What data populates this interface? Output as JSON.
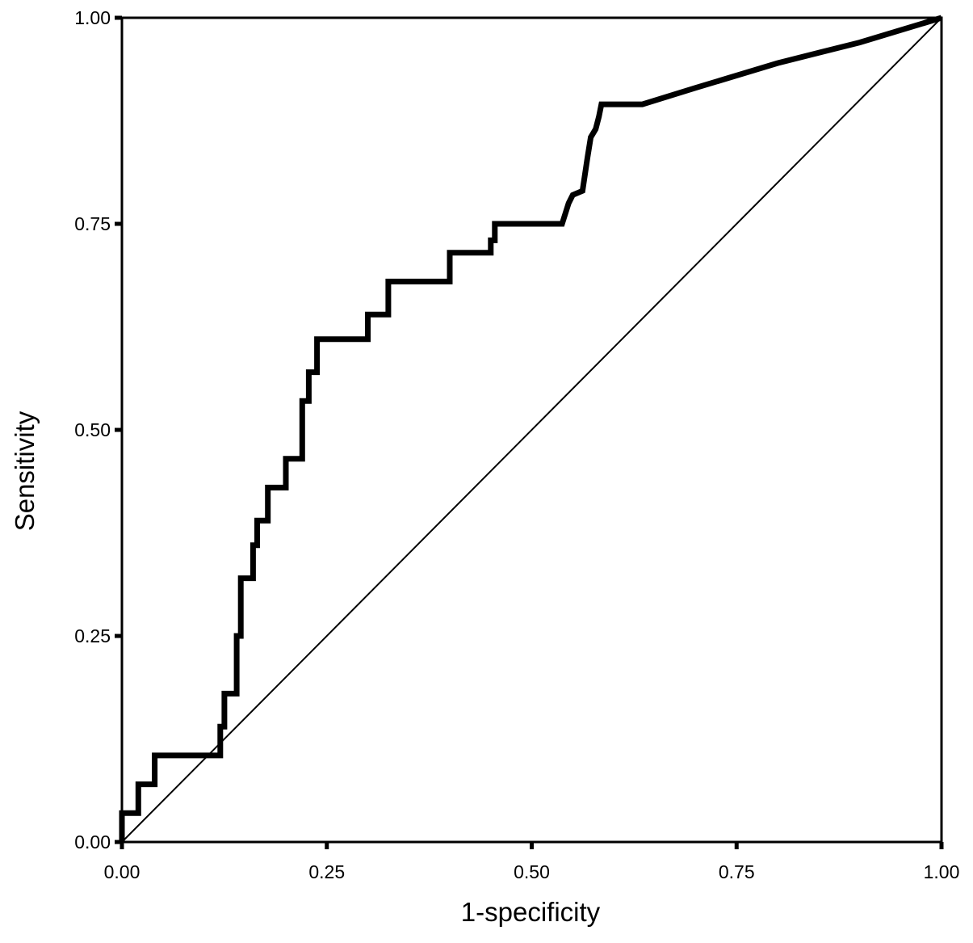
{
  "chart_data": {
    "type": "line",
    "xlabel": "1-specificity",
    "ylabel": "Sensitivity",
    "xlim": [
      0,
      1
    ],
    "ylim": [
      0,
      1
    ],
    "grid": false,
    "legend": "none",
    "x_ticks": [
      {
        "value": 0,
        "label": "0.00"
      },
      {
        "value": 0.25,
        "label": "0.25"
      },
      {
        "value": 0.5,
        "label": "0.50"
      },
      {
        "value": 0.75,
        "label": "0.75"
      },
      {
        "value": 1,
        "label": "1.00"
      }
    ],
    "y_ticks": [
      {
        "value": 0,
        "label": "0.00"
      },
      {
        "value": 0.25,
        "label": "0.25"
      },
      {
        "value": 0.5,
        "label": "0.50"
      },
      {
        "value": 0.75,
        "label": "0.75"
      },
      {
        "value": 1,
        "label": "1.00"
      }
    ],
    "series": [
      {
        "color": "#000000",
        "style": "step",
        "points": [
          [
            0,
            0
          ],
          [
            0,
            0.035
          ],
          [
            0.02,
            0.035
          ],
          [
            0.02,
            0.07
          ],
          [
            0.04,
            0.07
          ],
          [
            0.04,
            0.105
          ],
          [
            0.12,
            0.105
          ],
          [
            0.12,
            0.14
          ],
          [
            0.125,
            0.14
          ],
          [
            0.125,
            0.18
          ],
          [
            0.14,
            0.18
          ],
          [
            0.14,
            0.25
          ],
          [
            0.145,
            0.25
          ],
          [
            0.145,
            0.32
          ],
          [
            0.16,
            0.32
          ],
          [
            0.16,
            0.36
          ],
          [
            0.165,
            0.36
          ],
          [
            0.165,
            0.39
          ],
          [
            0.178,
            0.39
          ],
          [
            0.178,
            0.43
          ],
          [
            0.2,
            0.43
          ],
          [
            0.2,
            0.465
          ],
          [
            0.22,
            0.465
          ],
          [
            0.22,
            0.535
          ],
          [
            0.228,
            0.535
          ],
          [
            0.228,
            0.57
          ],
          [
            0.238,
            0.57
          ],
          [
            0.238,
            0.61
          ],
          [
            0.3,
            0.61
          ],
          [
            0.3,
            0.64
          ],
          [
            0.325,
            0.64
          ],
          [
            0.325,
            0.68
          ],
          [
            0.4,
            0.68
          ],
          [
            0.4,
            0.715
          ],
          [
            0.45,
            0.715
          ],
          [
            0.45,
            0.73
          ],
          [
            0.455,
            0.73
          ],
          [
            0.455,
            0.75
          ],
          [
            0.537,
            0.75
          ],
          [
            0.545,
            0.775
          ],
          [
            0.55,
            0.785
          ],
          [
            0.562,
            0.79
          ],
          [
            0.568,
            0.83
          ],
          [
            0.572,
            0.855
          ],
          [
            0.578,
            0.865
          ],
          [
            0.582,
            0.88
          ],
          [
            0.585,
            0.895
          ],
          [
            0.635,
            0.895
          ],
          [
            0.7,
            0.915
          ],
          [
            0.8,
            0.945
          ],
          [
            0.9,
            0.97
          ],
          [
            1,
            1
          ]
        ]
      },
      {
        "color": "#000000",
        "style": "reference",
        "points": [
          [
            0,
            0
          ],
          [
            1,
            1
          ]
        ]
      }
    ]
  }
}
